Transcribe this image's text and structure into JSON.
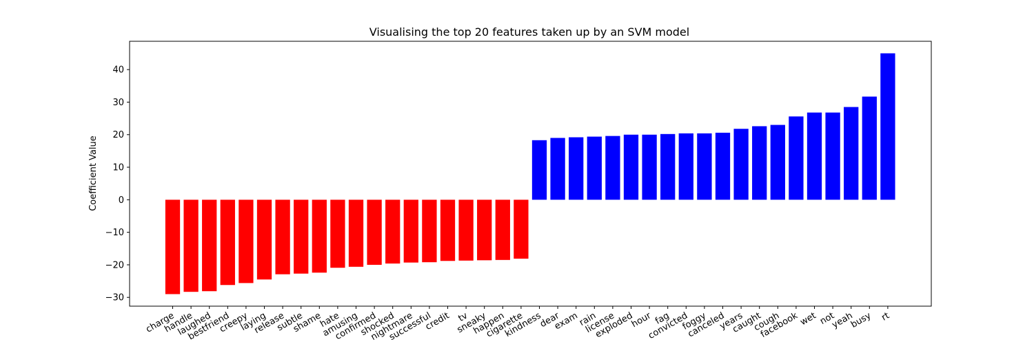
{
  "chart_data": {
    "type": "bar",
    "title": "Visualising the top 20 features taken up by an SVM model",
    "xlabel": "",
    "ylabel": "Coefficient Value",
    "ylim": [
      -32.7,
      48.7
    ],
    "yticks": [
      -30,
      -20,
      -10,
      0,
      10,
      20,
      30,
      40
    ],
    "ytick_labels": [
      "−30",
      "−20",
      "−10",
      "0",
      "10",
      "20",
      "30",
      "40"
    ],
    "grid": false,
    "colors": {
      "negative": "#ff0000",
      "positive": "#0000ff"
    },
    "categories": [
      "charge",
      "handle",
      "laughed",
      "bestfriend",
      "creepy",
      "laying",
      "release",
      "subtle",
      "shame",
      "hate",
      "amusing",
      "confirmed",
      "shocked",
      "nightmare",
      "successful",
      "credit",
      "tv",
      "sneaky",
      "happen",
      "cigarette",
      "kindness",
      "dear",
      "exam",
      "rain",
      "license",
      "exploded",
      "hour",
      "fag",
      "convicted",
      "foggy",
      "canceled",
      "years",
      "caught",
      "cough",
      "facebook",
      "wet",
      "not",
      "yeah",
      "busy",
      "rt"
    ],
    "values": [
      -29.0,
      -28.3,
      -28.1,
      -26.2,
      -25.6,
      -24.5,
      -22.9,
      -22.7,
      -22.4,
      -20.9,
      -20.6,
      -20.0,
      -19.6,
      -19.3,
      -19.2,
      -18.8,
      -18.7,
      -18.6,
      -18.5,
      -18.1,
      18.3,
      19.0,
      19.2,
      19.4,
      19.6,
      20.0,
      20.0,
      20.2,
      20.4,
      20.4,
      20.6,
      21.8,
      22.6,
      23.0,
      25.6,
      26.8,
      26.8,
      28.5,
      31.7,
      45.0
    ]
  }
}
